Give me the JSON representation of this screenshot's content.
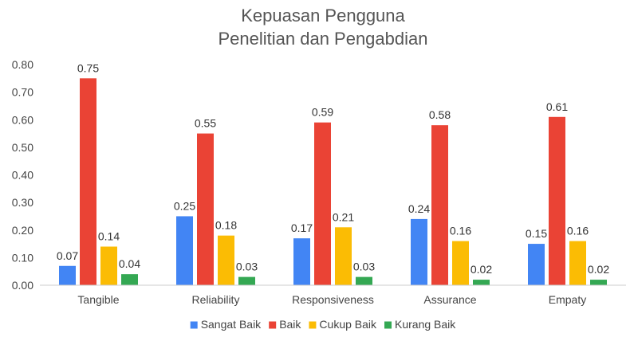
{
  "chart_data": {
    "type": "bar",
    "title": "Kepuasan Pengguna",
    "subtitle": "Penelitian dan Pengabdian",
    "xlabel": "",
    "ylabel": "",
    "categories": [
      "Tangible",
      "Reliability",
      "Responsiveness",
      "Assurance",
      "Empaty"
    ],
    "series": [
      {
        "name": "Sangat Baik",
        "color": "#4285F4",
        "values": [
          0.07,
          0.25,
          0.17,
          0.24,
          0.15
        ]
      },
      {
        "name": "Baik",
        "color": "#EA4335",
        "values": [
          0.75,
          0.55,
          0.59,
          0.58,
          0.61
        ]
      },
      {
        "name": "Cukup Baik",
        "color": "#FBBC04",
        "values": [
          0.14,
          0.18,
          0.21,
          0.16,
          0.16
        ]
      },
      {
        "name": "Kurang Baik",
        "color": "#34A853",
        "values": [
          0.04,
          0.03,
          0.03,
          0.02,
          0.02
        ]
      }
    ],
    "ylim": [
      0,
      0.8
    ],
    "yticks": [
      "0.00",
      "0.10",
      "0.20",
      "0.30",
      "0.40",
      "0.50",
      "0.60",
      "0.70",
      "0.80"
    ],
    "grid": false,
    "legend_position": "bottom"
  }
}
